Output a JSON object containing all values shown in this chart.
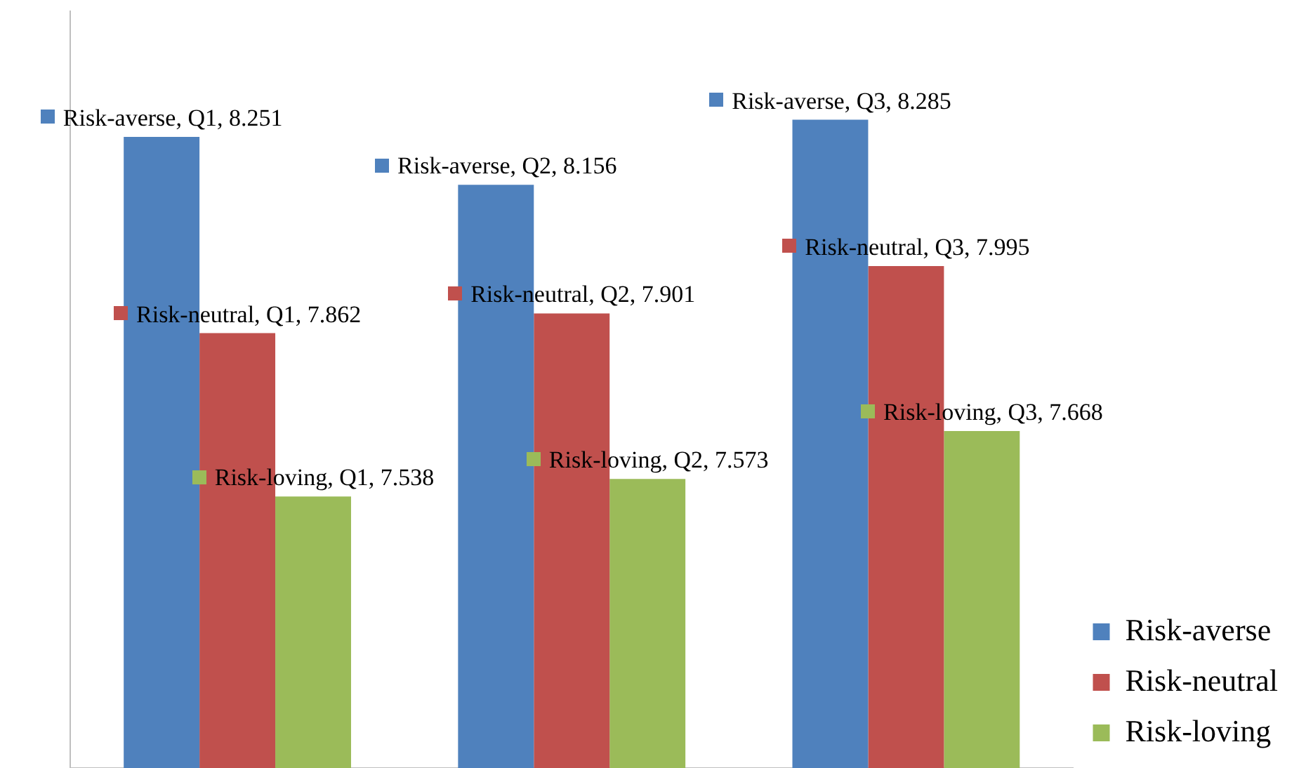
{
  "chart_data": {
    "type": "bar",
    "categories": [
      null,
      null,
      null
    ],
    "series": [
      {
        "name": "Risk-averse",
        "color": "#4f81bd",
        "values": [
          8.251,
          8.156,
          8.285
        ],
        "value_labels": [
          "Risk-averse, Q1, 8.251",
          "Risk-averse, Q2, 8.156",
          "Risk-averse, Q3, 8.285"
        ]
      },
      {
        "name": "Risk-neutral",
        "color": "#c0504d",
        "values": [
          7.862,
          7.901,
          7.995
        ],
        "value_labels": [
          "Risk-neutral, Q1, 7.862",
          "Risk-neutral, Q2, 7.901",
          "Risk-neutral, Q3, 7.995"
        ]
      },
      {
        "name": "Risk-loving",
        "color": "#9bbb59",
        "values": [
          7.538,
          7.573,
          7.668
        ],
        "value_labels": [
          "Risk-loving, Q1, 7.538",
          "Risk-loving, Q2, 7.573",
          "Risk-loving, Q3, 7.668"
        ]
      }
    ],
    "ylim": [
      7,
      8.5
    ],
    "tick_labels": false,
    "legend": "right"
  }
}
